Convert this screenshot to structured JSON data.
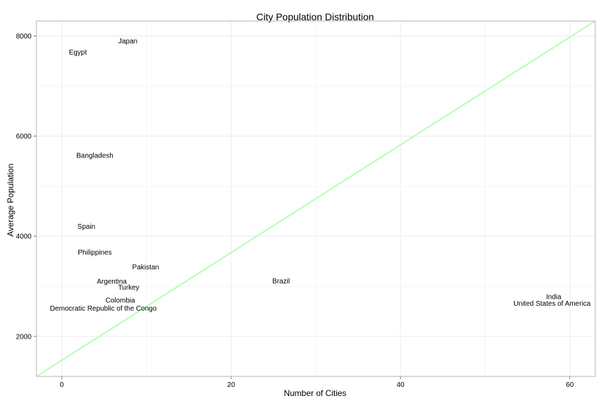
{
  "chart_data": {
    "type": "scatter",
    "title": "City Population Distribution",
    "xlabel": "Number of Cities",
    "ylabel": "Average Population",
    "xlim": [
      -3,
      63
    ],
    "ylim": [
      1200,
      8300
    ],
    "xticks": [
      0,
      20,
      40,
      60
    ],
    "xtick_labels": [
      "0",
      "20",
      "40",
      "60"
    ],
    "yticks": [
      2000,
      4000,
      6000,
      8000
    ],
    "ytick_labels": [
      "2000",
      "4000",
      "6000",
      "8000"
    ],
    "grid": true,
    "points": [
      {
        "label": "Japan",
        "x": 7.8,
        "y": 7900
      },
      {
        "label": "Egypt",
        "x": 1.9,
        "y": 7680
      },
      {
        "label": "Bangladesh",
        "x": 3.9,
        "y": 5620
      },
      {
        "label": "Spain",
        "x": 2.9,
        "y": 4200
      },
      {
        "label": "Philippines",
        "x": 3.9,
        "y": 3680
      },
      {
        "label": "Pakistan",
        "x": 9.9,
        "y": 3390
      },
      {
        "label": "Argentina",
        "x": 5.9,
        "y": 3100
      },
      {
        "label": "Turkey",
        "x": 7.9,
        "y": 2980
      },
      {
        "label": "Brazil",
        "x": 25.9,
        "y": 3110
      },
      {
        "label": "Colombia",
        "x": 6.9,
        "y": 2720
      },
      {
        "label": "Democratic Republic of the Congo",
        "x": 4.9,
        "y": 2560
      },
      {
        "label": "India",
        "x": 58.1,
        "y": 2790
      },
      {
        "label": "United States of America",
        "x": 57.9,
        "y": 2660
      }
    ],
    "trend_line": {
      "x": [
        -3,
        63
      ],
      "y": [
        1200,
        8300
      ],
      "color": "#b3ffb3"
    },
    "colors": {
      "grid": "#ececec",
      "border": "#b3b3b3"
    }
  }
}
